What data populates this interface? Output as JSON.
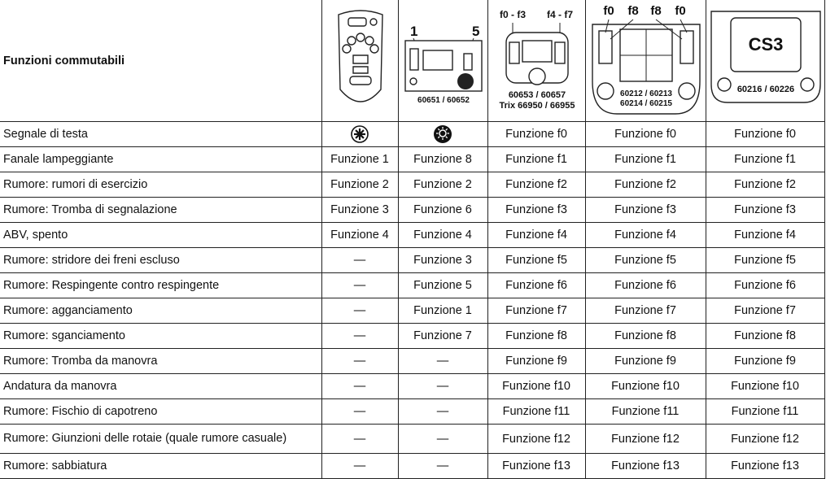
{
  "header": {
    "title": "Funzioni commutabili",
    "device2": {
      "left": "1",
      "right": "5",
      "model": "60651 / 60652"
    },
    "device3": {
      "left": "f0 - f3",
      "right": "f4 - f7",
      "model": "60653 / 60657",
      "model2": "Trix 66950 / 66955"
    },
    "device4": {
      "keys": [
        "f0",
        "f8",
        "f8",
        "f0"
      ],
      "model": "60212 / 60213",
      "model2": "60214 / 60215"
    },
    "device5": {
      "screen": "CS3",
      "model": "60216 / 60226"
    }
  },
  "rows": [
    {
      "function": "Segnale di testa",
      "cells": [
        null,
        null,
        "Funzione f0",
        "Funzione f0",
        "Funzione f0"
      ]
    },
    {
      "function": "Fanale lampeggiante",
      "cells": [
        "Funzione 1",
        "Funzione 8",
        "Funzione f1",
        "Funzione f1",
        "Funzione f1"
      ]
    },
    {
      "function": "Rumore: rumori di esercizio",
      "cells": [
        "Funzione 2",
        "Funzione 2",
        "Funzione f2",
        "Funzione f2",
        "Funzione f2"
      ]
    },
    {
      "function": "Rumore: Tromba di segnalazione",
      "cells": [
        "Funzione 3",
        "Funzione 6",
        "Funzione f3",
        "Funzione f3",
        "Funzione f3"
      ]
    },
    {
      "function": "ABV, spento",
      "cells": [
        "Funzione 4",
        "Funzione 4",
        "Funzione f4",
        "Funzione f4",
        "Funzione f4"
      ]
    },
    {
      "function": "Rumore: stridore dei freni escluso",
      "cells": [
        "—",
        "Funzione 3",
        "Funzione f5",
        "Funzione f5",
        "Funzione f5"
      ]
    },
    {
      "function": "Rumore: Respingente contro respingente",
      "cells": [
        "—",
        "Funzione 5",
        "Funzione f6",
        "Funzione f6",
        "Funzione f6"
      ]
    },
    {
      "function": "Rumore: agganciamento",
      "cells": [
        "—",
        "Funzione 1",
        "Funzione f7",
        "Funzione f7",
        "Funzione f7"
      ]
    },
    {
      "function": "Rumore: sganciamento",
      "cells": [
        "—",
        "Funzione 7",
        "Funzione f8",
        "Funzione f8",
        "Funzione f8"
      ]
    },
    {
      "function": "Rumore: Tromba da manovra",
      "cells": [
        "—",
        "—",
        "Funzione f9",
        "Funzione f9",
        "Funzione f9"
      ]
    },
    {
      "function": "Andatura da manovra",
      "cells": [
        "—",
        "—",
        "Funzione f10",
        "Funzione f10",
        "Funzione f10"
      ]
    },
    {
      "function": "Rumore: Fischio di capotreno",
      "cells": [
        "—",
        "—",
        "Funzione f11",
        "Funzione f11",
        "Funzione f11"
      ]
    },
    {
      "function": "Rumore: Giunzioni delle rotaie (quale rumore casuale)",
      "cells": [
        "—",
        "—",
        "Funzione f12",
        "Funzione f12",
        "Funzione f12"
      ]
    },
    {
      "function": "Rumore: sabbiatura",
      "cells": [
        "—",
        "—",
        "Funzione f13",
        "Funzione f13",
        "Funzione f13"
      ]
    }
  ]
}
